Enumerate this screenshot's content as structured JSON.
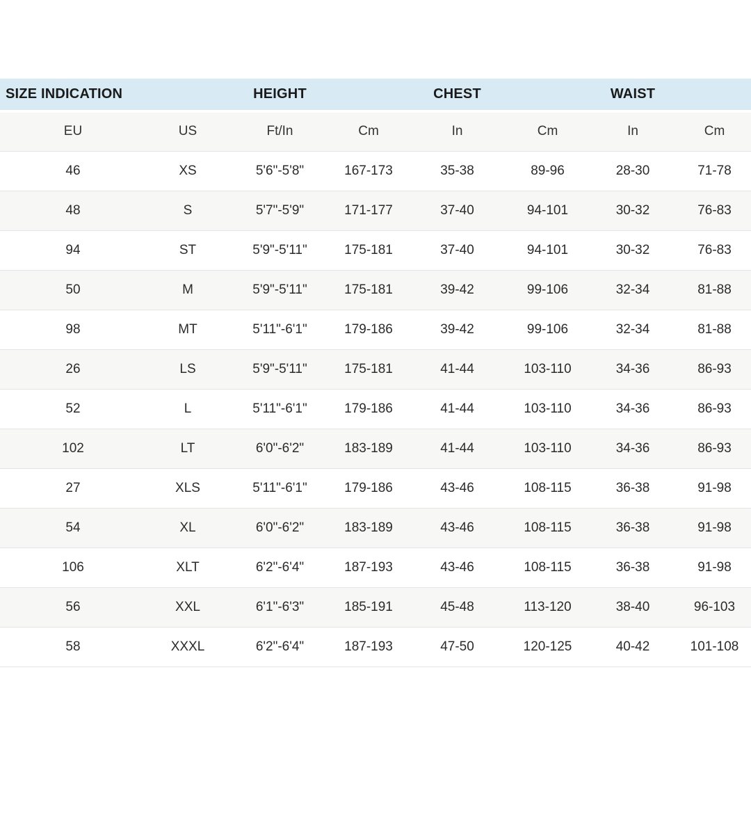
{
  "chart_data": {
    "type": "table",
    "group_headers": [
      "SIZE INDICATION",
      "HEIGHT",
      "CHEST",
      "WAIST"
    ],
    "columns": [
      "EU",
      "US",
      "Ft/In",
      "Cm",
      "In",
      "Cm",
      "In",
      "Cm"
    ],
    "rows": [
      [
        "46",
        "XS",
        "5'6\"-5'8\"",
        "167-173",
        "35-38",
        "89-96",
        "28-30",
        "71-78"
      ],
      [
        "48",
        "S",
        "5'7\"-5'9\"",
        "171-177",
        "37-40",
        "94-101",
        "30-32",
        "76-83"
      ],
      [
        "94",
        "ST",
        "5'9\"-5'11\"",
        "175-181",
        "37-40",
        "94-101",
        "30-32",
        "76-83"
      ],
      [
        "50",
        "M",
        "5'9\"-5'11\"",
        "175-181",
        "39-42",
        "99-106",
        "32-34",
        "81-88"
      ],
      [
        "98",
        "MT",
        "5'11\"-6'1\"",
        "179-186",
        "39-42",
        "99-106",
        "32-34",
        "81-88"
      ],
      [
        "26",
        "LS",
        "5'9\"-5'11\"",
        "175-181",
        "41-44",
        "103-110",
        "34-36",
        "86-93"
      ],
      [
        "52",
        "L",
        "5'11\"-6'1\"",
        "179-186",
        "41-44",
        "103-110",
        "34-36",
        "86-93"
      ],
      [
        "102",
        "LT",
        "6'0\"-6'2\"",
        "183-189",
        "41-44",
        "103-110",
        "34-36",
        "86-93"
      ],
      [
        "27",
        "XLS",
        "5'11\"-6'1\"",
        "179-186",
        "43-46",
        "108-115",
        "36-38",
        "91-98"
      ],
      [
        "54",
        "XL",
        "6'0\"-6'2\"",
        "183-189",
        "43-46",
        "108-115",
        "36-38",
        "91-98"
      ],
      [
        "106",
        "XLT",
        "6'2\"-6'4\"",
        "187-193",
        "43-46",
        "108-115",
        "36-38",
        "91-98"
      ],
      [
        "56",
        "XXL",
        "6'1\"-6'3\"",
        "185-191",
        "45-48",
        "113-120",
        "38-40",
        "96-103"
      ],
      [
        "58",
        "XXXL",
        "6'2\"-6'4\"",
        "187-193",
        "47-50",
        "120-125",
        "40-42",
        "101-108"
      ]
    ]
  },
  "colors": {
    "group_header_bg": "#d8eaf3",
    "stripe_bg": "#f7f7f5",
    "row_border": "#e4e4e4",
    "group_header_text": "#1a1a1a",
    "body_text": "#2b2b2b"
  }
}
